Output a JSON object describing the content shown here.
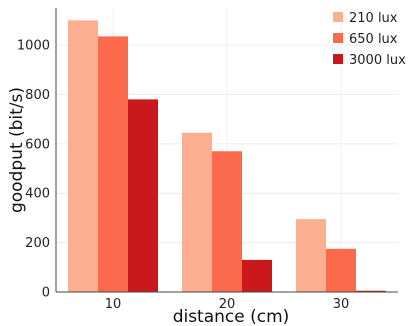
{
  "chart_data": {
    "type": "bar",
    "categories": [
      "10",
      "20",
      "30"
    ],
    "series": [
      {
        "name": "210 lux",
        "color": "#fcae91",
        "values": [
          1100,
          645,
          295
        ]
      },
      {
        "name": "650 lux",
        "color": "#fb6a4a",
        "values": [
          1035,
          570,
          175
        ]
      },
      {
        "name": "3000 lux",
        "color": "#cb181d",
        "values": [
          780,
          130,
          5
        ]
      }
    ],
    "xlabel": "distance (cm)",
    "ylabel": "goodput (bit/s)",
    "ylim": [
      0,
      1150
    ],
    "yticks": [
      0,
      200,
      400,
      600,
      800,
      1000
    ],
    "grid": true,
    "legend_position": "top-right"
  }
}
